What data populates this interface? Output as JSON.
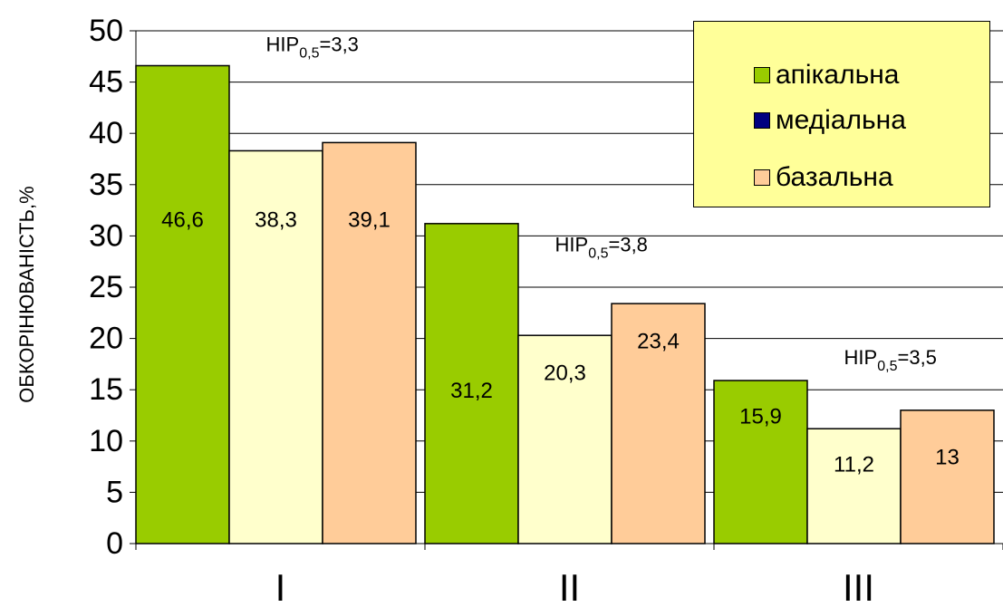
{
  "chart_data": {
    "type": "bar",
    "categories": [
      "I",
      "II",
      "III"
    ],
    "series": [
      {
        "name": "апікальна",
        "values": [
          46.6,
          31.2,
          15.9
        ],
        "labels": [
          "46,6",
          "31,2",
          "15,9"
        ],
        "color": "#99cc00",
        "legend_color": "#99cc00"
      },
      {
        "name": "медіальна",
        "values": [
          38.3,
          20.3,
          11.2
        ],
        "labels": [
          "38,3",
          "20,3",
          "11,2"
        ],
        "color": "#ffffcc",
        "legend_color": "#000080"
      },
      {
        "name": "базальна",
        "values": [
          39.1,
          23.4,
          13
        ],
        "labels": [
          "39,1",
          "23,4",
          "13"
        ],
        "color": "#ffcc99",
        "legend_color": "#ffcc99"
      }
    ],
    "ylabel": "ОБКОРІНЮВАНІСТЬ,%",
    "xlabel": "",
    "ylim": [
      0,
      50
    ],
    "yticks": [
      0,
      5,
      10,
      15,
      20,
      25,
      30,
      35,
      40,
      45,
      50
    ],
    "grid": true,
    "legend_position": "top-right",
    "annotations": [
      {
        "category": "I",
        "base": "НІР",
        "sub": "0,5",
        "rest": "=3,3",
        "y": 48
      },
      {
        "category": "II",
        "base": "НІР",
        "sub": "0,5",
        "rest": "=3,8",
        "y": 28.5
      },
      {
        "category": "III",
        "base": "НІР",
        "sub": "0,5",
        "rest": "=3,5",
        "y": 17.5
      }
    ]
  }
}
